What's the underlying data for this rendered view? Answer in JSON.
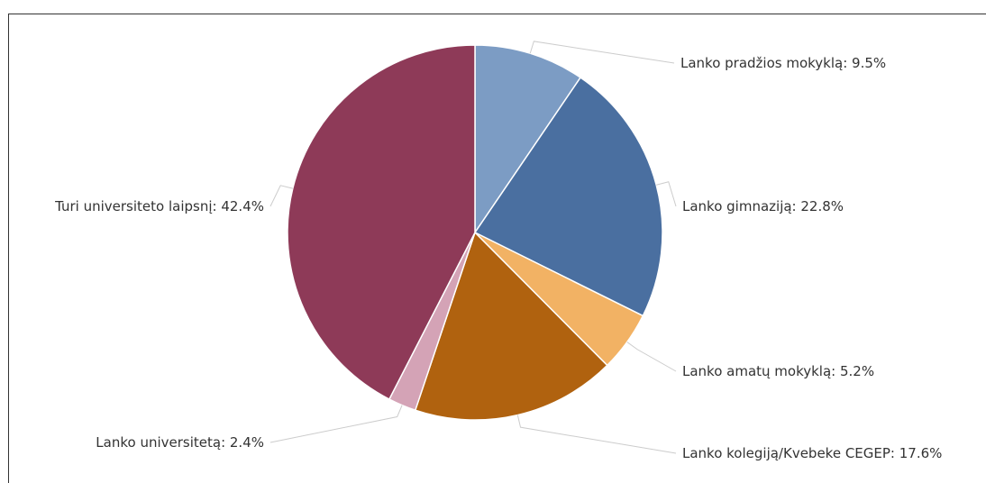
{
  "chart_data": {
    "type": "pie",
    "title": "",
    "slices": [
      {
        "label": "Lanko pradžios mokyklą: 9.5%",
        "value": 9.5,
        "color": "#7c9cc4"
      },
      {
        "label": "Lanko gimnaziją: 22.8%",
        "value": 22.8,
        "color": "#4a6fa0"
      },
      {
        "label": "Lanko amatų mokyklą: 5.2%",
        "value": 5.2,
        "color": "#f2b264"
      },
      {
        "label": "Lanko kolegiją/Kvebeke CEGEP: 17.6%",
        "value": 17.6,
        "color": "#b0620f"
      },
      {
        "label": "Lanko universitetą: 2.4%",
        "value": 2.4,
        "color": "#d4a3b6"
      },
      {
        "label": "Turi universiteto laipsnį: 42.4%",
        "value": 42.4,
        "color": "#8e3a58"
      }
    ]
  }
}
